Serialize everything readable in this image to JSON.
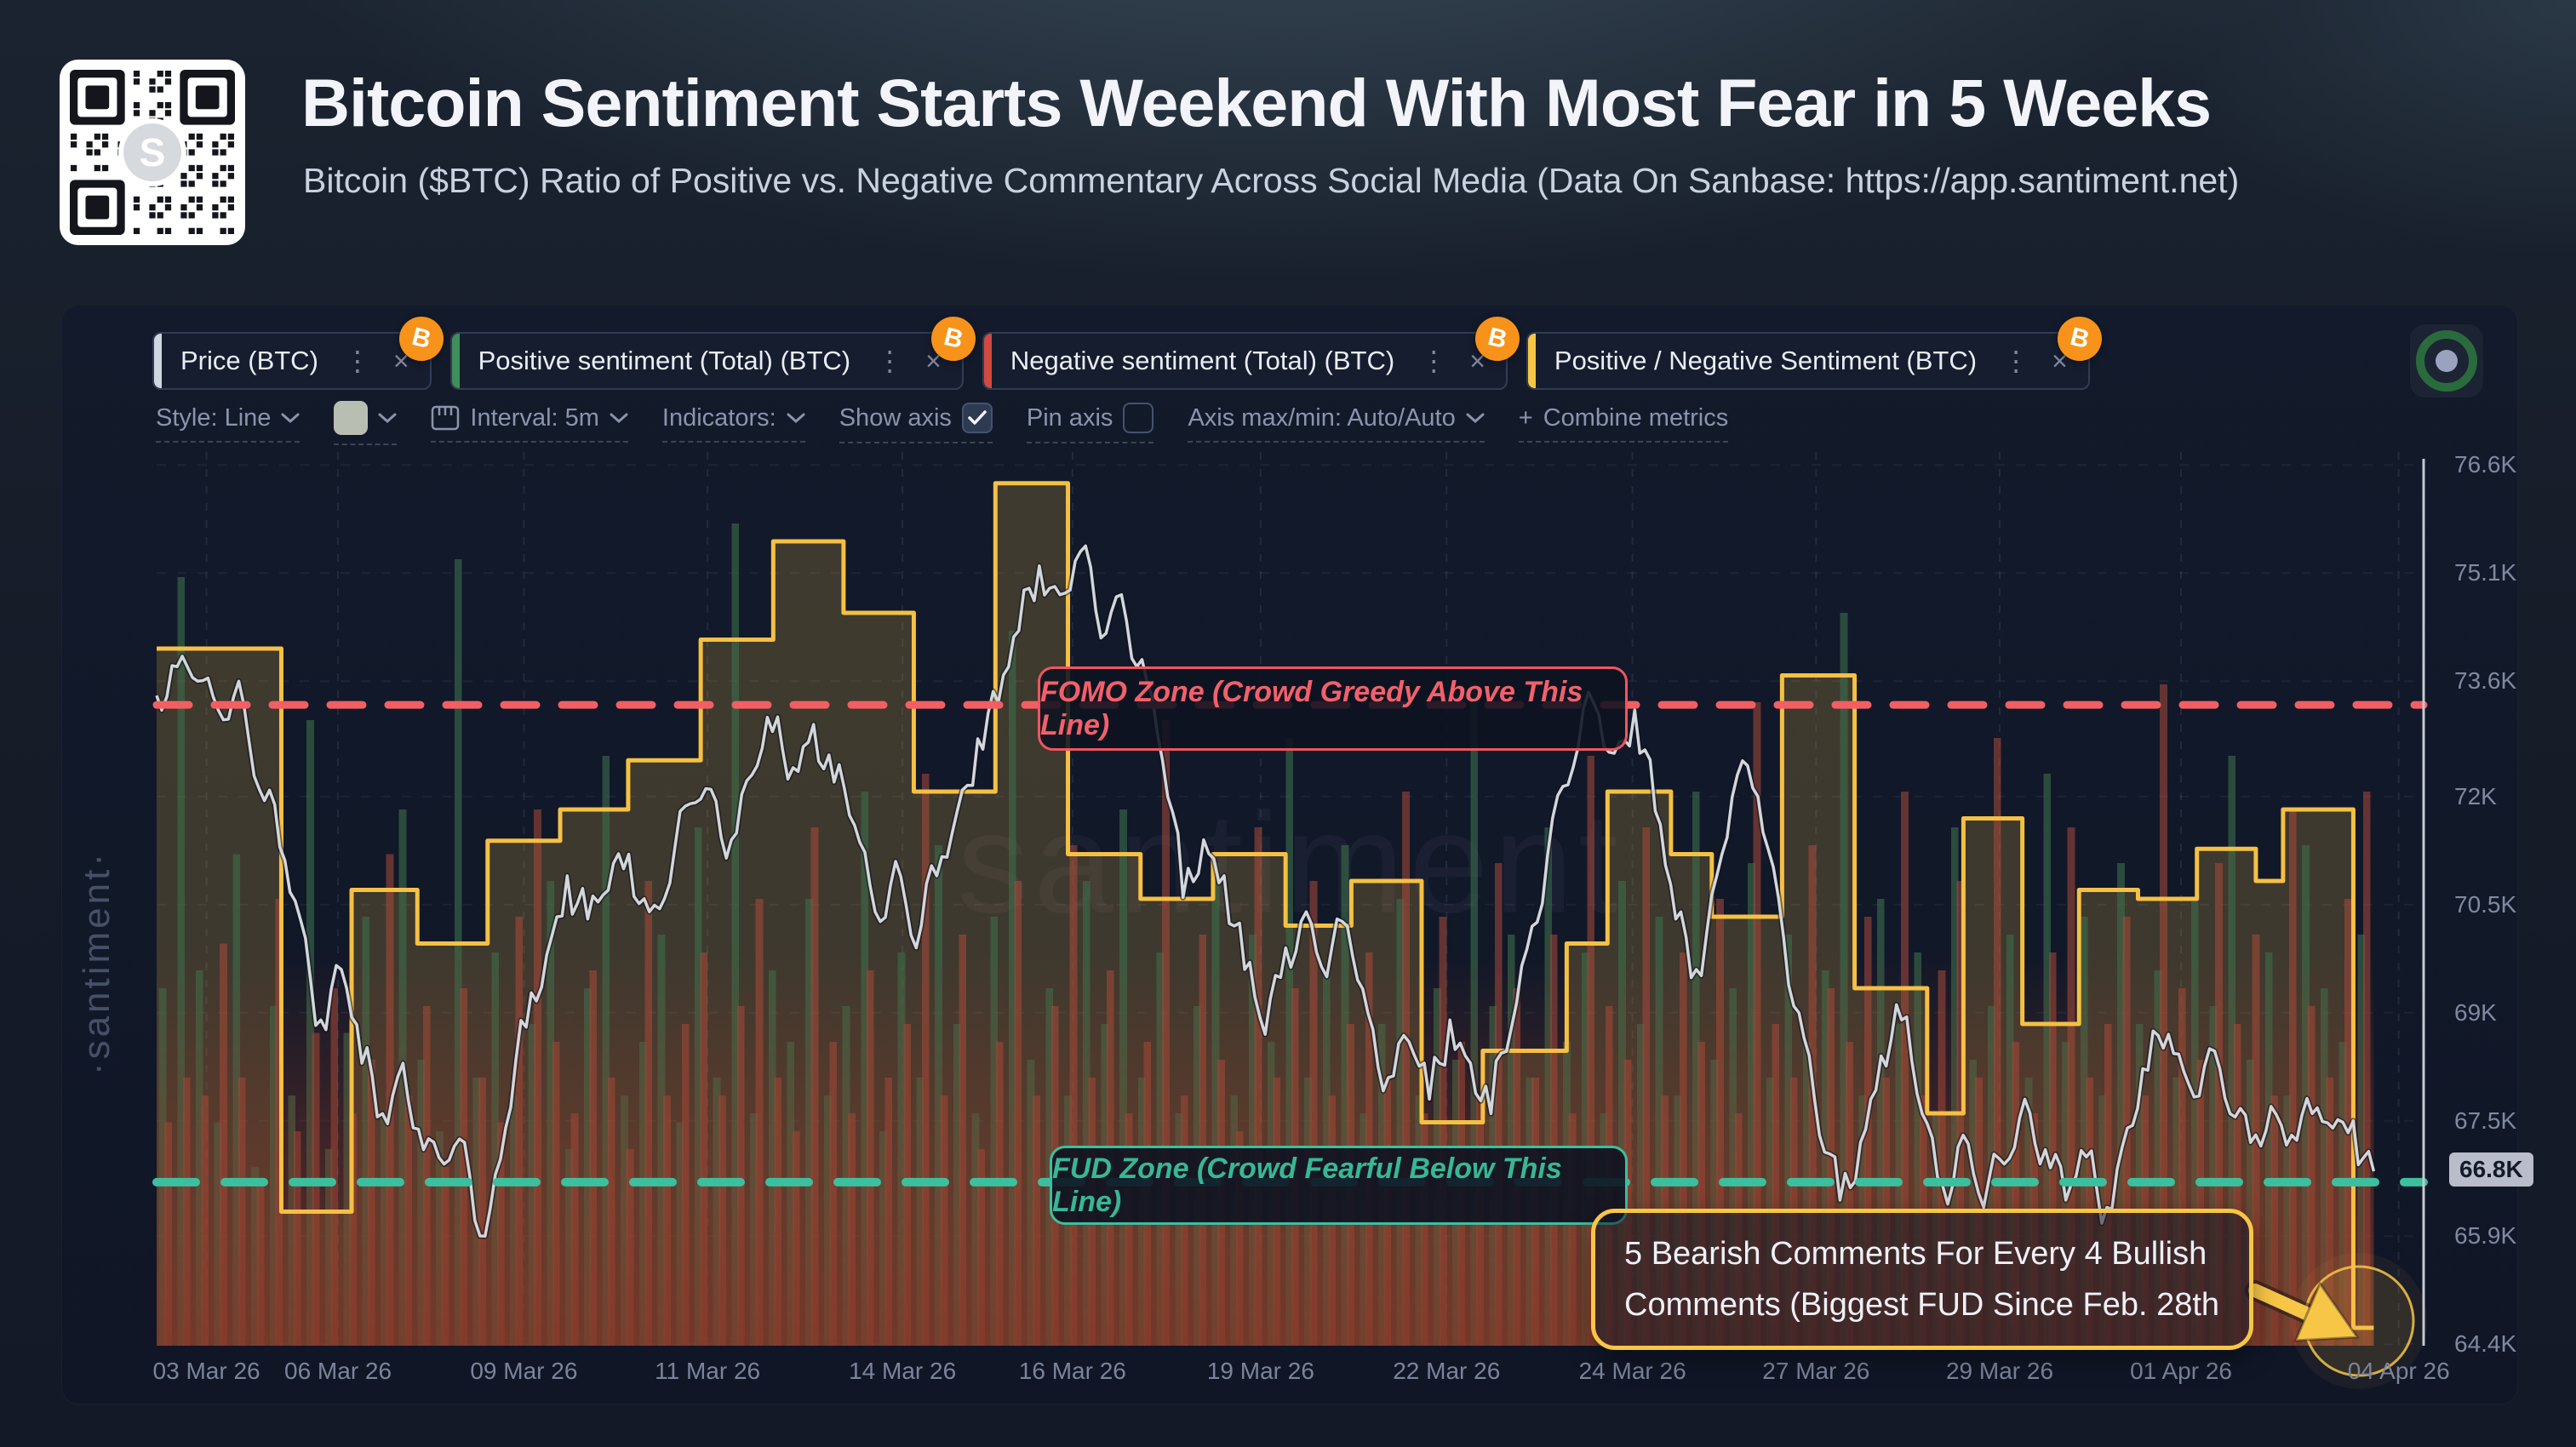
{
  "header": {
    "title": "Bitcoin Sentiment Starts Weekend With Most Fear in 5 Weeks",
    "subtitle": "Bitcoin ($BTC) Ratio of Positive vs. Negative Commentary Across Social Media (Data On Sanbase: https://app.santiment.net)",
    "qr_center_letter": "S"
  },
  "metric_tabs": [
    {
      "label": "Price (BTC)",
      "accent": "#cfd6e2"
    },
    {
      "label": "Positive sentiment (Total) (BTC)",
      "accent": "#3f8f5a"
    },
    {
      "label": "Negative sentiment (Total) (BTC)",
      "accent": "#cf4a41"
    },
    {
      "label": "Positive / Negative Sentiment (BTC)",
      "accent": "#f7c646"
    }
  ],
  "btc_badge_color": "#f7931a",
  "live_indicator": {
    "ring_color": "#2a6b3d",
    "dot_color": "#99a3bf"
  },
  "toolbar": {
    "style_label": "Style: Line",
    "swatch_color": "#b9beb2",
    "interval_label": "Interval: 5m",
    "indicators_label": "Indicators:",
    "show_axis_label": "Show axis",
    "show_axis_checked": true,
    "pin_axis_label": "Pin axis",
    "pin_axis_checked": false,
    "axis_maxmin_label": "Axis max/min: Auto/Auto",
    "plus": "+",
    "combine_label": "Combine metrics"
  },
  "watermarks": {
    "vertical": "·santiment·",
    "center": "santiment"
  },
  "chart_data": {
    "type": "composite",
    "grid": true,
    "legend_position": "top-tabs",
    "x_ticks": [
      "03 Mar 26",
      "06 Mar 26",
      "09 Mar 26",
      "11 Mar 26",
      "14 Mar 26",
      "16 Mar 26",
      "19 Mar 26",
      "22 Mar 26",
      "24 Mar 26",
      "27 Mar 26",
      "29 Mar 26",
      "01 Apr 26",
      "04 Apr 26"
    ],
    "x_tick_pct": [
      2.2,
      8.0,
      16.2,
      24.3,
      32.9,
      40.4,
      48.7,
      56.9,
      65.1,
      73.2,
      81.3,
      89.3,
      98.9
    ],
    "series_end_pct": 97.8,
    "price_axis": {
      "min": 64.38,
      "max": 76.78,
      "unit": "K",
      "ticks": [
        "76.6K",
        "75.1K",
        "73.6K",
        "72K",
        "70.5K",
        "69K",
        "67.5K",
        "65.9K",
        "64.4K"
      ],
      "tick_values": [
        76.6,
        75.1,
        73.6,
        72,
        70.5,
        69,
        67.5,
        65.9,
        64.4
      ],
      "current_label": "66.8K",
      "current_value": 66.8
    },
    "price_line": {
      "name": "Price (BTC)",
      "color": "#d3d6db",
      "values_k": [
        73.4,
        73.8,
        73.6,
        73.2,
        73.6,
        72.1,
        71.3,
        70.3,
        68.9,
        69.6,
        68.3,
        67.6,
        68.3,
        67.1,
        66.9,
        67.2,
        65.9,
        67.4,
        68.8,
        69.8,
        70.9,
        70.3,
        70.7,
        71.2,
        70.4,
        70.8,
        71.9,
        72.1,
        71.4,
        72.3,
        72.9,
        72.4,
        73.0,
        72.2,
        71.6,
        70.4,
        71.1,
        69.9,
        70.9,
        71.8,
        72.8,
        73.3,
        74.3,
        75.2,
        74.8,
        75.4,
        74.2,
        74.8,
        73.9,
        72.5,
        70.6,
        71.4,
        70.9,
        69.6,
        68.7,
        69.9,
        70.4,
        69.5,
        70.2,
        69.0,
        68.1,
        68.6,
        67.8,
        68.9,
        68.3,
        67.6,
        68.8,
        70.2,
        71.7,
        72.4,
        73.3,
        72.6,
        73.2,
        71.8,
        70.3,
        69.6,
        70.9,
        72.3,
        72.0,
        70.6,
        69.0,
        67.3,
        66.4,
        67.2,
        68.4,
        68.9,
        67.6,
        66.6,
        67.3,
        66.3,
        66.9,
        67.8,
        67.1,
        66.4,
        67.0,
        66.3,
        67.4,
        68.2,
        68.7,
        68.0,
        68.5,
        67.6,
        67.2,
        67.7,
        67.3,
        67.6,
        67.4,
        67.5,
        66.8
      ]
    },
    "ratio_steps": {
      "name": "Positive / Negative Sentiment (BTC)",
      "color": "#f5c044",
      "fill": "rgba(245,192,68,0.20)",
      "unit": "level_pct_of_panel_height",
      "points": [
        [
          0,
          0.78
        ],
        [
          5.5,
          0.15
        ],
        [
          8.6,
          0.51
        ],
        [
          11.5,
          0.45
        ],
        [
          14.6,
          0.565
        ],
        [
          17.8,
          0.6
        ],
        [
          20.8,
          0.655
        ],
        [
          24.0,
          0.79
        ],
        [
          27.2,
          0.9
        ],
        [
          30.3,
          0.82
        ],
        [
          33.4,
          0.62
        ],
        [
          37.0,
          0.965
        ],
        [
          40.2,
          0.55
        ],
        [
          43.4,
          0.5
        ],
        [
          46.6,
          0.55
        ],
        [
          49.8,
          0.47
        ],
        [
          52.7,
          0.52
        ],
        [
          55.8,
          0.25
        ],
        [
          58.5,
          0.33
        ],
        [
          62.2,
          0.45
        ],
        [
          64.0,
          0.62
        ],
        [
          66.8,
          0.55
        ],
        [
          68.6,
          0.48
        ],
        [
          71.7,
          0.75
        ],
        [
          74.9,
          0.4
        ],
        [
          78.1,
          0.26
        ],
        [
          79.7,
          0.59
        ],
        [
          82.3,
          0.36
        ],
        [
          84.8,
          0.51
        ],
        [
          87.4,
          0.5
        ],
        [
          90.0,
          0.556
        ],
        [
          92.6,
          0.52
        ],
        [
          93.8,
          0.6
        ],
        [
          96.9,
          0.02
        ]
      ]
    },
    "sentiment_bars": {
      "positive_name": "Positive sentiment (Total) (BTC)",
      "positive_color": "#3c6e4b",
      "negative_name": "Negative sentiment (Total) (BTC)",
      "negative_color": "#aa4a3a",
      "unit": "pct_of_panel_height",
      "pairs": [
        [
          40,
          25
        ],
        [
          86,
          30
        ],
        [
          42,
          28
        ],
        [
          25,
          45
        ],
        [
          55,
          30
        ],
        [
          20,
          18
        ],
        [
          38,
          50
        ],
        [
          28,
          24
        ],
        [
          70,
          35
        ],
        [
          22,
          40
        ],
        [
          35,
          26
        ],
        [
          48,
          32
        ],
        [
          26,
          55
        ],
        [
          60,
          28
        ],
        [
          32,
          38
        ],
        [
          24,
          20
        ],
        [
          88,
          40
        ],
        [
          30,
          30
        ],
        [
          44,
          25
        ],
        [
          28,
          48
        ],
        [
          36,
          60
        ],
        [
          52,
          34
        ],
        [
          22,
          26
        ],
        [
          40,
          42
        ],
        [
          66,
          30
        ],
        [
          28,
          22
        ],
        [
          34,
          52
        ],
        [
          46,
          28
        ],
        [
          25,
          36
        ],
        [
          58,
          44
        ],
        [
          30,
          28
        ],
        [
          92,
          38
        ],
        [
          26,
          50
        ],
        [
          42,
          30
        ],
        [
          34,
          24
        ],
        [
          50,
          58
        ],
        [
          28,
          34
        ],
        [
          38,
          26
        ],
        [
          62,
          42
        ],
        [
          24,
          30
        ],
        [
          44,
          36
        ],
        [
          30,
          64
        ],
        [
          56,
          28
        ],
        [
          36,
          46
        ],
        [
          26,
          22
        ],
        [
          48,
          34
        ],
        [
          80,
          52
        ],
        [
          32,
          28
        ],
        [
          40,
          38
        ],
        [
          28,
          56
        ],
        [
          52,
          30
        ],
        [
          36,
          42
        ],
        [
          60,
          26
        ],
        [
          30,
          34
        ],
        [
          44,
          70
        ],
        [
          26,
          28
        ],
        [
          38,
          46
        ],
        [
          54,
          32
        ],
        [
          28,
          24
        ],
        [
          46,
          58
        ],
        [
          34,
          30
        ],
        [
          68,
          40
        ],
        [
          30,
          52
        ],
        [
          42,
          28
        ],
        [
          56,
          36
        ],
        [
          26,
          44
        ],
        [
          36,
          30
        ],
        [
          50,
          62
        ],
        [
          28,
          26
        ],
        [
          40,
          48
        ],
        [
          32,
          34
        ],
        [
          74,
          28
        ],
        [
          38,
          54
        ],
        [
          46,
          40
        ],
        [
          30,
          30
        ],
        [
          58,
          46
        ],
        [
          34,
          26
        ],
        [
          44,
          66
        ],
        [
          26,
          38
        ],
        [
          52,
          32
        ],
        [
          36,
          58
        ],
        [
          48,
          28
        ],
        [
          28,
          44
        ],
        [
          62,
          34
        ],
        [
          32,
          50
        ],
        [
          40,
          26
        ],
        [
          54,
          72
        ],
        [
          30,
          36
        ],
        [
          46,
          30
        ],
        [
          34,
          56
        ],
        [
          42,
          40
        ],
        [
          82,
          34
        ],
        [
          28,
          48
        ],
        [
          50,
          30
        ],
        [
          36,
          62
        ],
        [
          44,
          28
        ],
        [
          26,
          42
        ],
        [
          58,
          52
        ],
        [
          32,
          30
        ],
        [
          38,
          68
        ],
        [
          46,
          34
        ],
        [
          30,
          26
        ],
        [
          64,
          44
        ],
        [
          34,
          58
        ],
        [
          48,
          30
        ],
        [
          28,
          36
        ],
        [
          54,
          48
        ],
        [
          36,
          28
        ],
        [
          42,
          74
        ],
        [
          30,
          40
        ],
        [
          50,
          32
        ],
        [
          38,
          54
        ],
        [
          66,
          36
        ],
        [
          32,
          46
        ],
        [
          44,
          28
        ],
        [
          28,
          60
        ],
        [
          56,
          38
        ],
        [
          40,
          30
        ],
        [
          34,
          50
        ],
        [
          46,
          62
        ]
      ]
    },
    "zones": {
      "fomo": {
        "label": "FOMO Zone (Crowd Greedy Above This Line)",
        "color": "#f25f63",
        "level": 0.717
      },
      "fud": {
        "label": "FUD Zone (Crowd Fearful Below This Line)",
        "color": "#3cbf9e",
        "level": 0.183
      }
    },
    "callout": {
      "line1": "5 Bearish Comments For Every 4 Bullish",
      "line2": "Comments (Biggest FUD Since Feb. 28th",
      "color": "#f7c646"
    }
  }
}
